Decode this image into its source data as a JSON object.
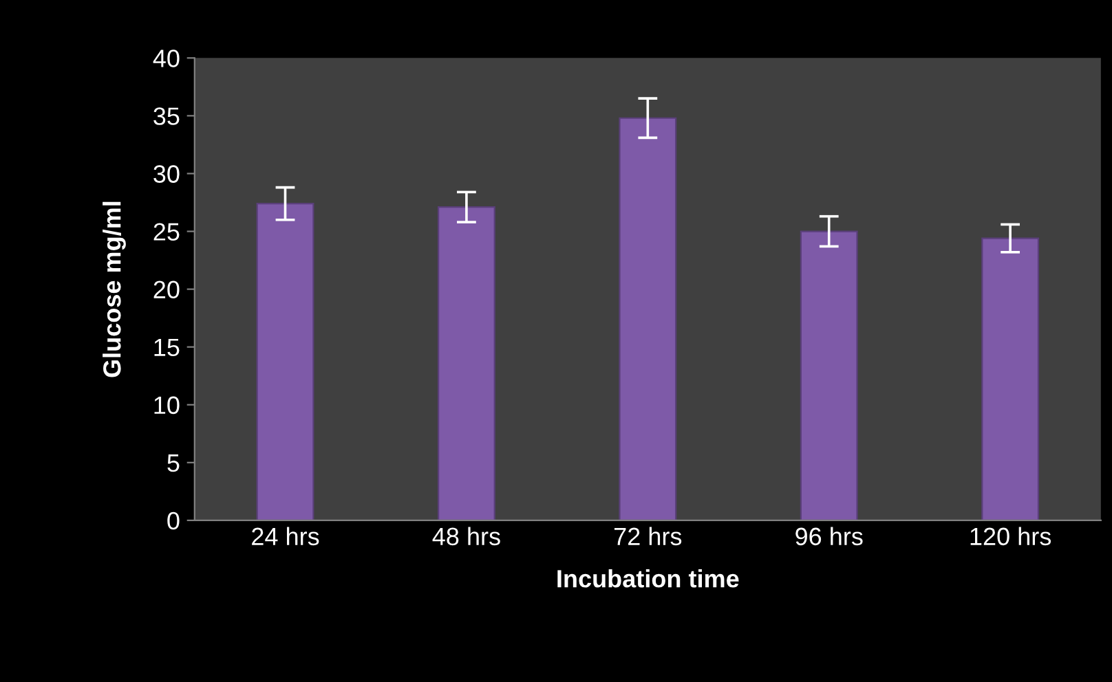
{
  "chart_data": {
    "type": "bar",
    "xlabel": "Incubation time",
    "ylabel": "Glucose mg/ml",
    "categories": [
      "24 hrs",
      "48 hrs",
      "72 hrs",
      "96 hrs",
      "120 hrs"
    ],
    "values": [
      27.4,
      27.1,
      34.8,
      25.0,
      24.4
    ],
    "errors": [
      1.4,
      1.3,
      1.7,
      1.3,
      1.2
    ],
    "color": "#7e5aa8",
    "ylim": [
      0,
      40
    ],
    "yticks": [
      0,
      5,
      10,
      15,
      20,
      25,
      30,
      35,
      40
    ],
    "grid": false,
    "legend": false
  }
}
